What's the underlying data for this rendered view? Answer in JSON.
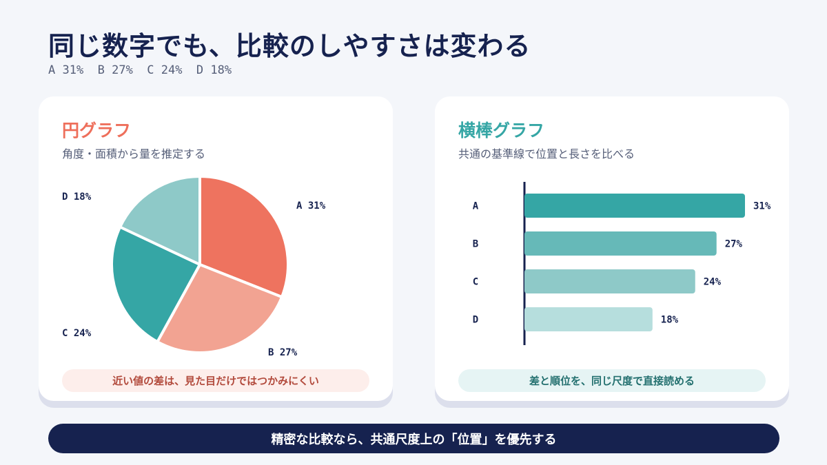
{
  "header": {
    "title": "同じ数字でも、比較のしやすさは変わる",
    "subtitle": "A 31%  B 27%  C 24%  D 18%"
  },
  "pie_panel": {
    "title": "円グラフ",
    "subtitle": "角度・面積から量を推定する",
    "note": "近い値の差は、見た目だけではつかみにくい"
  },
  "bar_panel": {
    "title": "横棒グラフ",
    "subtitle": "共通の基準線で位置と長さを比べる",
    "note": "差と順位を、同じ尺度で直接読める"
  },
  "conclusion": "精密な比較なら、共通尺度上の「位置」を優先する",
  "colors": {
    "coral": "#ee735f",
    "salmon": "#f2a392",
    "teal": "#35a6a5",
    "teal_mid": "#66b9b8",
    "teal_light": "#8ec9c8",
    "teal_pale": "#b6dedd",
    "navy": "#16224f"
  },
  "chart_data": [
    {
      "type": "pie",
      "unit": "%",
      "slices": [
        {
          "label": "A",
          "value": 31,
          "display": "A 31%",
          "color": "#ee735f"
        },
        {
          "label": "B",
          "value": 27,
          "display": "B 27%",
          "color": "#f2a392"
        },
        {
          "label": "C",
          "value": 24,
          "display": "C 24%",
          "color": "#35a6a5"
        },
        {
          "label": "D",
          "value": 18,
          "display": "D 18%",
          "color": "#8ec9c8"
        }
      ]
    },
    {
      "type": "bar",
      "orientation": "horizontal",
      "unit": "%",
      "categories": [
        "A",
        "B",
        "C",
        "D"
      ],
      "values": [
        31,
        27,
        24,
        18
      ],
      "value_labels": [
        "31%",
        "27%",
        "24%",
        "18%"
      ],
      "colors": [
        "#35a6a5",
        "#66b9b8",
        "#8ec9c8",
        "#b6dedd"
      ],
      "xlim": [
        0,
        31
      ]
    }
  ]
}
